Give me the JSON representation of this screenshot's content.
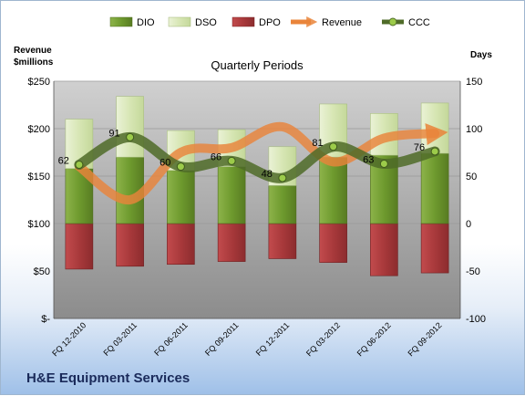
{
  "company": "H&E Equipment Services",
  "chart_data": {
    "type": "bar",
    "subtitle": "Quarterly Periods",
    "left_axis_title_line1": "Revenue",
    "left_axis_title_line2": "$millions",
    "right_axis_title": "Days",
    "left_ylim": [
      0,
      250
    ],
    "right_ylim": [
      -100,
      150
    ],
    "left_ticks": [
      "$-",
      "$50",
      "$100",
      "$150",
      "$200",
      "$250"
    ],
    "right_ticks": [
      "-100",
      "-50",
      "0",
      "50",
      "100",
      "150"
    ],
    "grid": true,
    "legend_position": "top",
    "categories": [
      "FQ 12-2010",
      "FQ 03-2011",
      "FQ 06-2011",
      "FQ 09-2011",
      "FQ 12-2011",
      "FQ 03-2012",
      "FQ 06-2012",
      "FQ 09-2012"
    ],
    "series": [
      {
        "name": "DIO",
        "axis": "right",
        "color": "#6e9a2e",
        "values": [
          58,
          70,
          56,
          60,
          40,
          70,
          72,
          74
        ]
      },
      {
        "name": "DSO",
        "axis": "right",
        "color": "#dde9c0",
        "values": [
          52,
          64,
          42,
          39,
          41,
          56,
          44,
          53
        ]
      },
      {
        "name": "DPO",
        "axis": "right",
        "color": "#b03a3c",
        "values": [
          -48,
          -45,
          -43,
          -40,
          -37,
          -41,
          -55,
          -52
        ]
      },
      {
        "name": "Revenue",
        "axis": "left",
        "color": "#e9843a",
        "values": [
          160,
          125,
          175,
          180,
          202,
          165,
          190,
          195
        ]
      },
      {
        "name": "CCC",
        "axis": "right",
        "color": "#4f6b28",
        "values": [
          62,
          91,
          60,
          66,
          48,
          81,
          63,
          76
        ]
      }
    ],
    "ccc_labels": [
      "62",
      "91",
      "60",
      "66",
      "48",
      "81",
      "63",
      "76"
    ]
  },
  "legend": {
    "dio": "DIO",
    "dso": "DSO",
    "dpo": "DPO",
    "revenue": "Revenue",
    "ccc": "CCC"
  }
}
